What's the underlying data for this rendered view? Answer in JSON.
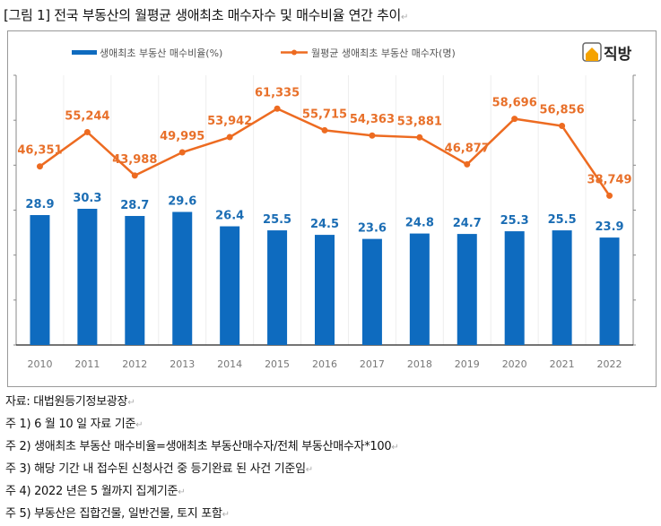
{
  "title": "[그림 1] 전국 부동산의 월평균 생애최초 매수자수 및 매수비율 연간 추이",
  "logo_text": "직방",
  "chart_data": {
    "type": "bar+line",
    "categories": [
      "2010",
      "2011",
      "2012",
      "2013",
      "2014",
      "2015",
      "2016",
      "2017",
      "2018",
      "2019",
      "2020",
      "2021",
      "2022"
    ],
    "series": [
      {
        "name": "생애최초 부동산 매수비율(%)",
        "type": "bar",
        "axis": "left",
        "color": "#0E6BBF",
        "label_color": "#1B6DB4",
        "values": [
          28.9,
          30.3,
          28.7,
          29.6,
          26.4,
          25.5,
          24.5,
          23.6,
          24.8,
          24.7,
          25.3,
          25.5,
          23.9
        ],
        "labels": [
          "28.9",
          "30.3",
          "28.7",
          "29.6",
          "26.4",
          "25.5",
          "24.5",
          "23.6",
          "24.8",
          "24.7",
          "25.3",
          "25.5",
          "23.9"
        ]
      },
      {
        "name": "월평균 생애최초 부동산 매수자(명)",
        "type": "line",
        "axis": "right",
        "color": "#ED6B21",
        "label_color": "#E8702A",
        "values": [
          46351,
          55244,
          43988,
          49995,
          53942,
          61335,
          55715,
          54363,
          53881,
          46877,
          58696,
          56856,
          38749
        ],
        "labels": [
          "46,351",
          "55,244",
          "43,988",
          "49,995",
          "53,942",
          "61,335",
          "55,715",
          "54,363",
          "53,881",
          "46,877",
          "58,696",
          "56,856",
          "38,749"
        ]
      }
    ],
    "y_left_range": [
      0,
      60
    ],
    "y_right_range": [
      0,
      70000
    ],
    "axis_tick_labels_shown": false,
    "legend_position": "top",
    "grid": "vertical light"
  },
  "notes": [
    "자료: 대법원등기정보광장",
    "주 1) 6 월 10 일 자료 기준",
    "주 2) 생애최초 부동산 매수비율=생애최초 부동산매수자/전체 부동산매수자*100",
    "주 3) 해당 기간 내 접수된 신청사건 중 등기완료 된 사건 기준임",
    "주 4) 2022 년은 5 월까지 집계기준",
    "주 5) 부동산은 집합건물, 일반건물, 토지 포함"
  ]
}
